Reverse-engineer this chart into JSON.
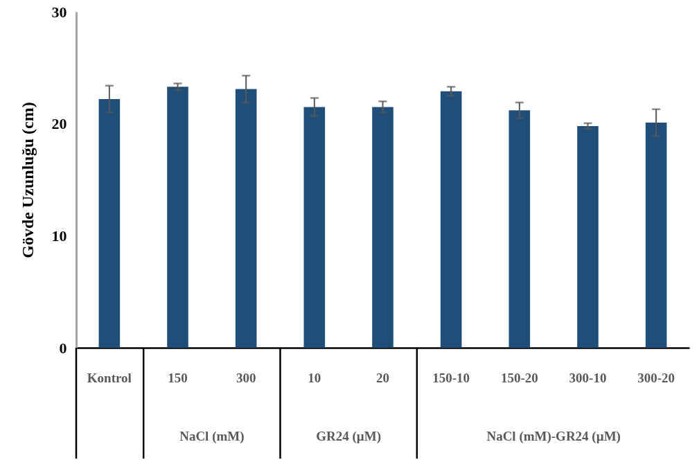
{
  "chart_data": {
    "type": "bar",
    "ylabel": "Gövde Uzunluğu (cm)",
    "categories": [
      "Kontrol",
      "150",
      "300",
      "10",
      "20",
      "150-10",
      "150-20",
      "300-10",
      "300-20"
    ],
    "values": [
      22.2,
      23.3,
      23.1,
      21.5,
      21.5,
      22.9,
      21.2,
      19.8,
      20.1
    ],
    "errors": [
      1.2,
      0.3,
      1.2,
      0.8,
      0.5,
      0.4,
      0.7,
      0.25,
      1.2
    ],
    "color": "#1f4e79",
    "ylim": [
      0,
      30
    ],
    "yticks": [
      0,
      10,
      20,
      30
    ],
    "grid": false,
    "annotations": [
      "NaCl (mM)",
      "GR24 (µM)",
      "NaCl (mM)-GR24  (µM)"
    ]
  }
}
